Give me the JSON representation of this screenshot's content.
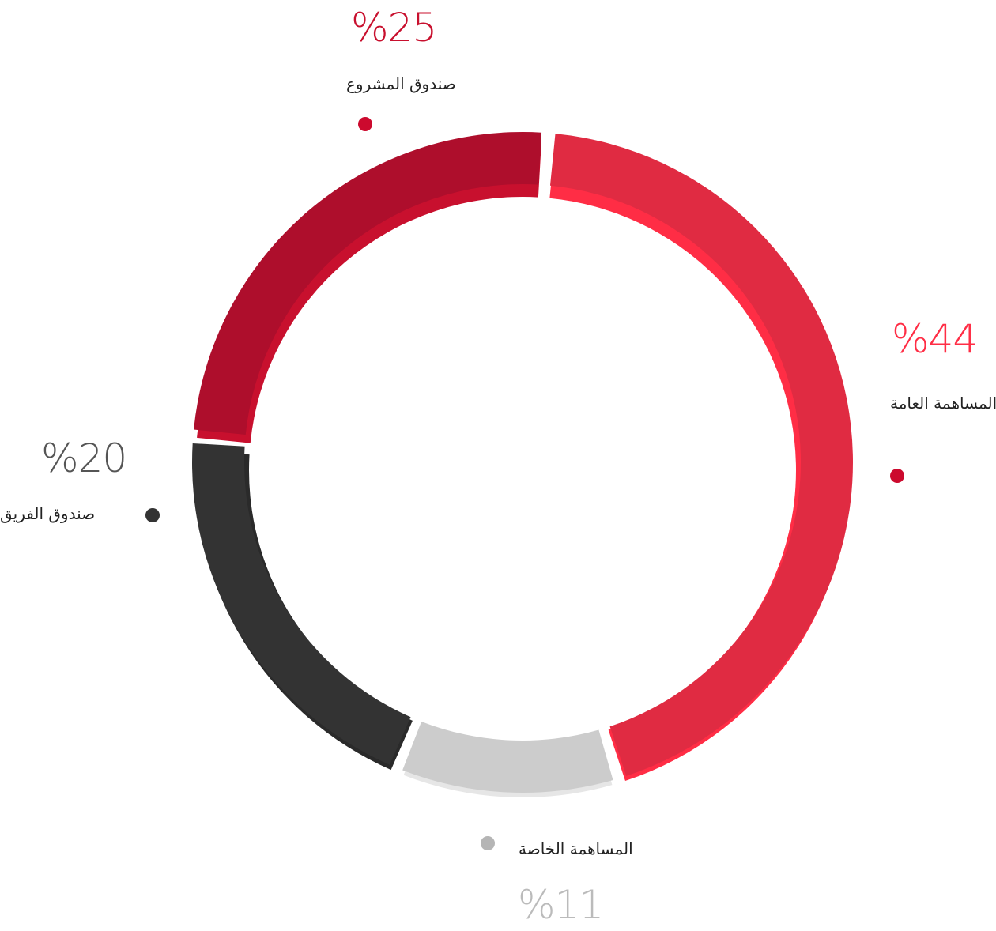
{
  "chart_data": {
    "type": "pie",
    "variant": "donut",
    "slices": [
      {
        "key": "public",
        "label": "المساهمة العامة",
        "value": 44,
        "display": "%44",
        "color": "#e02b42",
        "shade": "#ff2d45",
        "dot_color": "#cc0a2e"
      },
      {
        "key": "private",
        "label": "المساهمة الخاصة",
        "value": 11,
        "display": "%11",
        "color": "#cccccc",
        "shade": "#e6e6e6",
        "dot_color": "#b5b5b5"
      },
      {
        "key": "team",
        "label": "صندوق الفريق",
        "value": 20,
        "display": "%20",
        "color": "#333333",
        "shade": "#2a2a2a",
        "dot_color": "#333333"
      },
      {
        "key": "project",
        "label": "صندوق المشروع",
        "value": 25,
        "display": "%25",
        "color": "#ae0e2c",
        "shade": "#c8102e",
        "dot_color": "#cc0a2e"
      }
    ],
    "legend_placement": "around",
    "grid": false
  },
  "colors": {
    "pct_public": "#ff2d45",
    "pct_private": "#bbbbbb",
    "pct_team": "#555555",
    "pct_project": "#c8102e"
  }
}
